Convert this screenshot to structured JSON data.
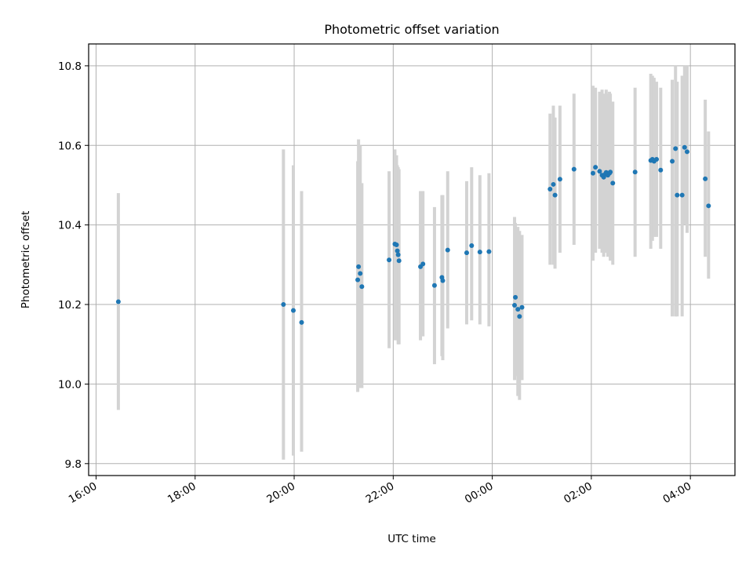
{
  "chart_data": {
    "type": "scatter",
    "title": "Photometric offset variation",
    "xlabel": "UTC time",
    "ylabel": "Photometric offset",
    "x_axis_type": "time",
    "x_range": [
      "16:00",
      "05:00"
    ],
    "x_ticks": [
      "16:00",
      "18:00",
      "20:00",
      "22:00",
      "00:00",
      "02:00",
      "04:00"
    ],
    "xlim": [
      -0.15,
      12.9
    ],
    "ylim": [
      9.77,
      10.855
    ],
    "y_ticks": [
      9.8,
      10.0,
      10.2,
      10.4,
      10.6,
      10.8
    ],
    "grid": true,
    "colors": {
      "point": "#1f77b4",
      "errorbar": "#d3d3d3",
      "grid": "#b0b0b0"
    },
    "series": [
      {
        "x": [
          "16:27",
          "19:47",
          "19:59",
          "20:09",
          "21:17",
          "21:18",
          "21:20",
          "21:22",
          "21:55",
          "22:02",
          "22:04",
          "22:05",
          "22:06",
          "22:07",
          "22:33",
          "22:36",
          "22:50",
          "22:59",
          "23:00",
          "23:06",
          "23:29",
          "23:35",
          "23:45",
          "23:56",
          "00:27",
          "00:28",
          "00:31",
          "00:33",
          "00:36",
          "01:10",
          "01:14",
          "01:16",
          "01:22",
          "01:39",
          "02:02",
          "02:05",
          "02:10",
          "02:13",
          "02:15",
          "02:17",
          "02:18",
          "02:20",
          "02:22",
          "02:23",
          "02:26",
          "02:53",
          "03:12",
          "03:14",
          "03:16",
          "03:19",
          "03:24",
          "03:38",
          "03:42",
          "03:44",
          "03:50",
          "03:53",
          "03:56",
          "04:18",
          "04:22"
        ],
        "y": [
          10.207,
          10.2,
          10.185,
          10.155,
          10.262,
          10.295,
          10.278,
          10.245,
          10.312,
          10.352,
          10.35,
          10.335,
          10.325,
          10.31,
          10.295,
          10.302,
          10.248,
          10.268,
          10.26,
          10.337,
          10.33,
          10.348,
          10.332,
          10.333,
          10.198,
          10.218,
          10.188,
          10.17,
          10.193,
          10.49,
          10.502,
          10.475,
          10.515,
          10.54,
          10.53,
          10.545,
          10.535,
          10.525,
          10.52,
          10.528,
          10.532,
          10.525,
          10.53,
          10.533,
          10.505,
          10.533,
          10.562,
          10.565,
          10.56,
          10.565,
          10.538,
          10.56,
          10.592,
          10.475,
          10.475,
          10.595,
          10.584,
          10.516,
          10.448
        ],
        "err_low": [
          9.935,
          9.81,
          9.82,
          9.83,
          9.98,
          10.0,
          9.99,
          9.99,
          10.09,
          10.11,
          10.11,
          10.12,
          10.1,
          10.1,
          10.11,
          10.12,
          10.05,
          10.07,
          10.06,
          10.14,
          10.15,
          10.16,
          10.15,
          10.145,
          10.01,
          10.02,
          9.97,
          9.96,
          10.01,
          10.3,
          10.3,
          10.29,
          10.33,
          10.35,
          10.31,
          10.33,
          10.34,
          10.33,
          10.32,
          10.33,
          10.33,
          10.32,
          10.33,
          10.31,
          10.3,
          10.32,
          10.34,
          10.36,
          10.37,
          10.37,
          10.34,
          10.17,
          10.17,
          10.17,
          10.17,
          10.4,
          10.38,
          10.32,
          10.265
        ],
        "err_high": [
          10.48,
          10.59,
          10.55,
          10.485,
          10.56,
          10.615,
          10.6,
          10.505,
          10.535,
          10.59,
          10.575,
          10.55,
          10.545,
          10.54,
          10.485,
          10.485,
          10.445,
          10.475,
          10.475,
          10.535,
          10.51,
          10.545,
          10.525,
          10.53,
          10.42,
          10.405,
          10.395,
          10.385,
          10.375,
          10.68,
          10.7,
          10.67,
          10.7,
          10.73,
          10.75,
          10.745,
          10.735,
          10.74,
          10.73,
          10.72,
          10.74,
          10.73,
          10.735,
          10.73,
          10.71,
          10.745,
          10.78,
          10.775,
          10.77,
          10.76,
          10.745,
          10.765,
          10.8,
          10.76,
          10.775,
          10.8,
          10.8,
          10.715,
          10.635
        ]
      }
    ]
  }
}
